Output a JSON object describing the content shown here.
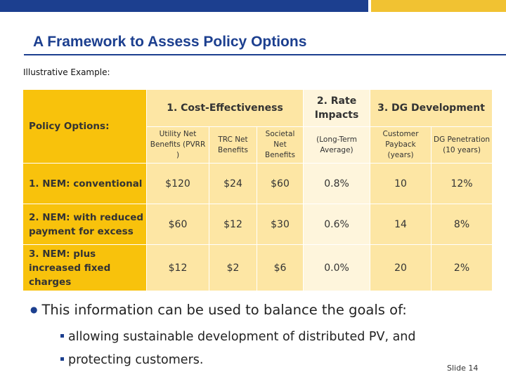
{
  "header": {
    "title": "A Framework to Assess Policy Options",
    "subtitle": "Illustrative Example:",
    "colors": {
      "blue": "#1c3f8f",
      "gold": "#f1c232"
    }
  },
  "table": {
    "corner_label": "Policy Options:",
    "group_headers": [
      "1. Cost-Effectiveness",
      "2. Rate Impacts",
      "3. DG Development"
    ],
    "sub_headers": [
      "Utility Net Benefits (PVRR )",
      "TRC Net Benefits",
      "Societal Net Benefits",
      "(Long-Term Average)",
      "Customer Payback (years)",
      "DG Penetration (10 years)"
    ],
    "rows": [
      {
        "label": "1. NEM: conventional",
        "values": [
          "$120",
          "$24",
          "$60",
          "0.8%",
          "10",
          "12%"
        ]
      },
      {
        "label": "2. NEM: with reduced payment for excess",
        "values": [
          "$60",
          "$12",
          "$30",
          "0.6%",
          "14",
          "8%"
        ]
      },
      {
        "label": "3. NEM: plus increased fixed charges",
        "values": [
          "$12",
          "$2",
          "$6",
          "0.0%",
          "20",
          "2%"
        ]
      }
    ],
    "colors": {
      "gold": "#f8c20c",
      "cream": "#fde6a4",
      "light": "#fef5dc"
    }
  },
  "bullets": {
    "main": "This information can be used to balance the goals of:",
    "sub": [
      "allowing sustainable development of distributed PV, and",
      "protecting customers."
    ]
  },
  "footer": {
    "slide": "Slide 14"
  }
}
